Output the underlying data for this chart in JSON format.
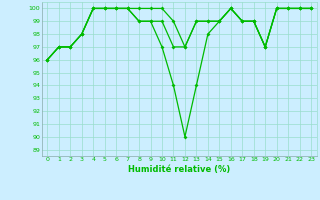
{
  "xlabel": "Humidité relative (%)",
  "bg_color": "#cceeff",
  "line_color": "#00bb00",
  "grid_color": "#99ddcc",
  "xlim": [
    -0.5,
    23.5
  ],
  "ylim": [
    88.5,
    100.5
  ],
  "yticks": [
    89,
    90,
    91,
    92,
    93,
    94,
    95,
    96,
    97,
    98,
    99,
    100
  ],
  "xticks": [
    0,
    1,
    2,
    3,
    4,
    5,
    6,
    7,
    8,
    9,
    10,
    11,
    12,
    13,
    14,
    15,
    16,
    17,
    18,
    19,
    20,
    21,
    22,
    23
  ],
  "line1": [
    96,
    97,
    97,
    98,
    100,
    100,
    100,
    100,
    100,
    100,
    100,
    99,
    97,
    99,
    99,
    99,
    100,
    99,
    99,
    97,
    100,
    100,
    100,
    100
  ],
  "line2": [
    96,
    97,
    97,
    98,
    100,
    100,
    100,
    100,
    99,
    99,
    99,
    97,
    97,
    99,
    99,
    99,
    100,
    99,
    99,
    97,
    100,
    100,
    100,
    100
  ],
  "line3": [
    96,
    97,
    97,
    98,
    100,
    100,
    100,
    100,
    99,
    99,
    97,
    94,
    90,
    94,
    98,
    99,
    100,
    99,
    99,
    97,
    100,
    100,
    100,
    100
  ]
}
